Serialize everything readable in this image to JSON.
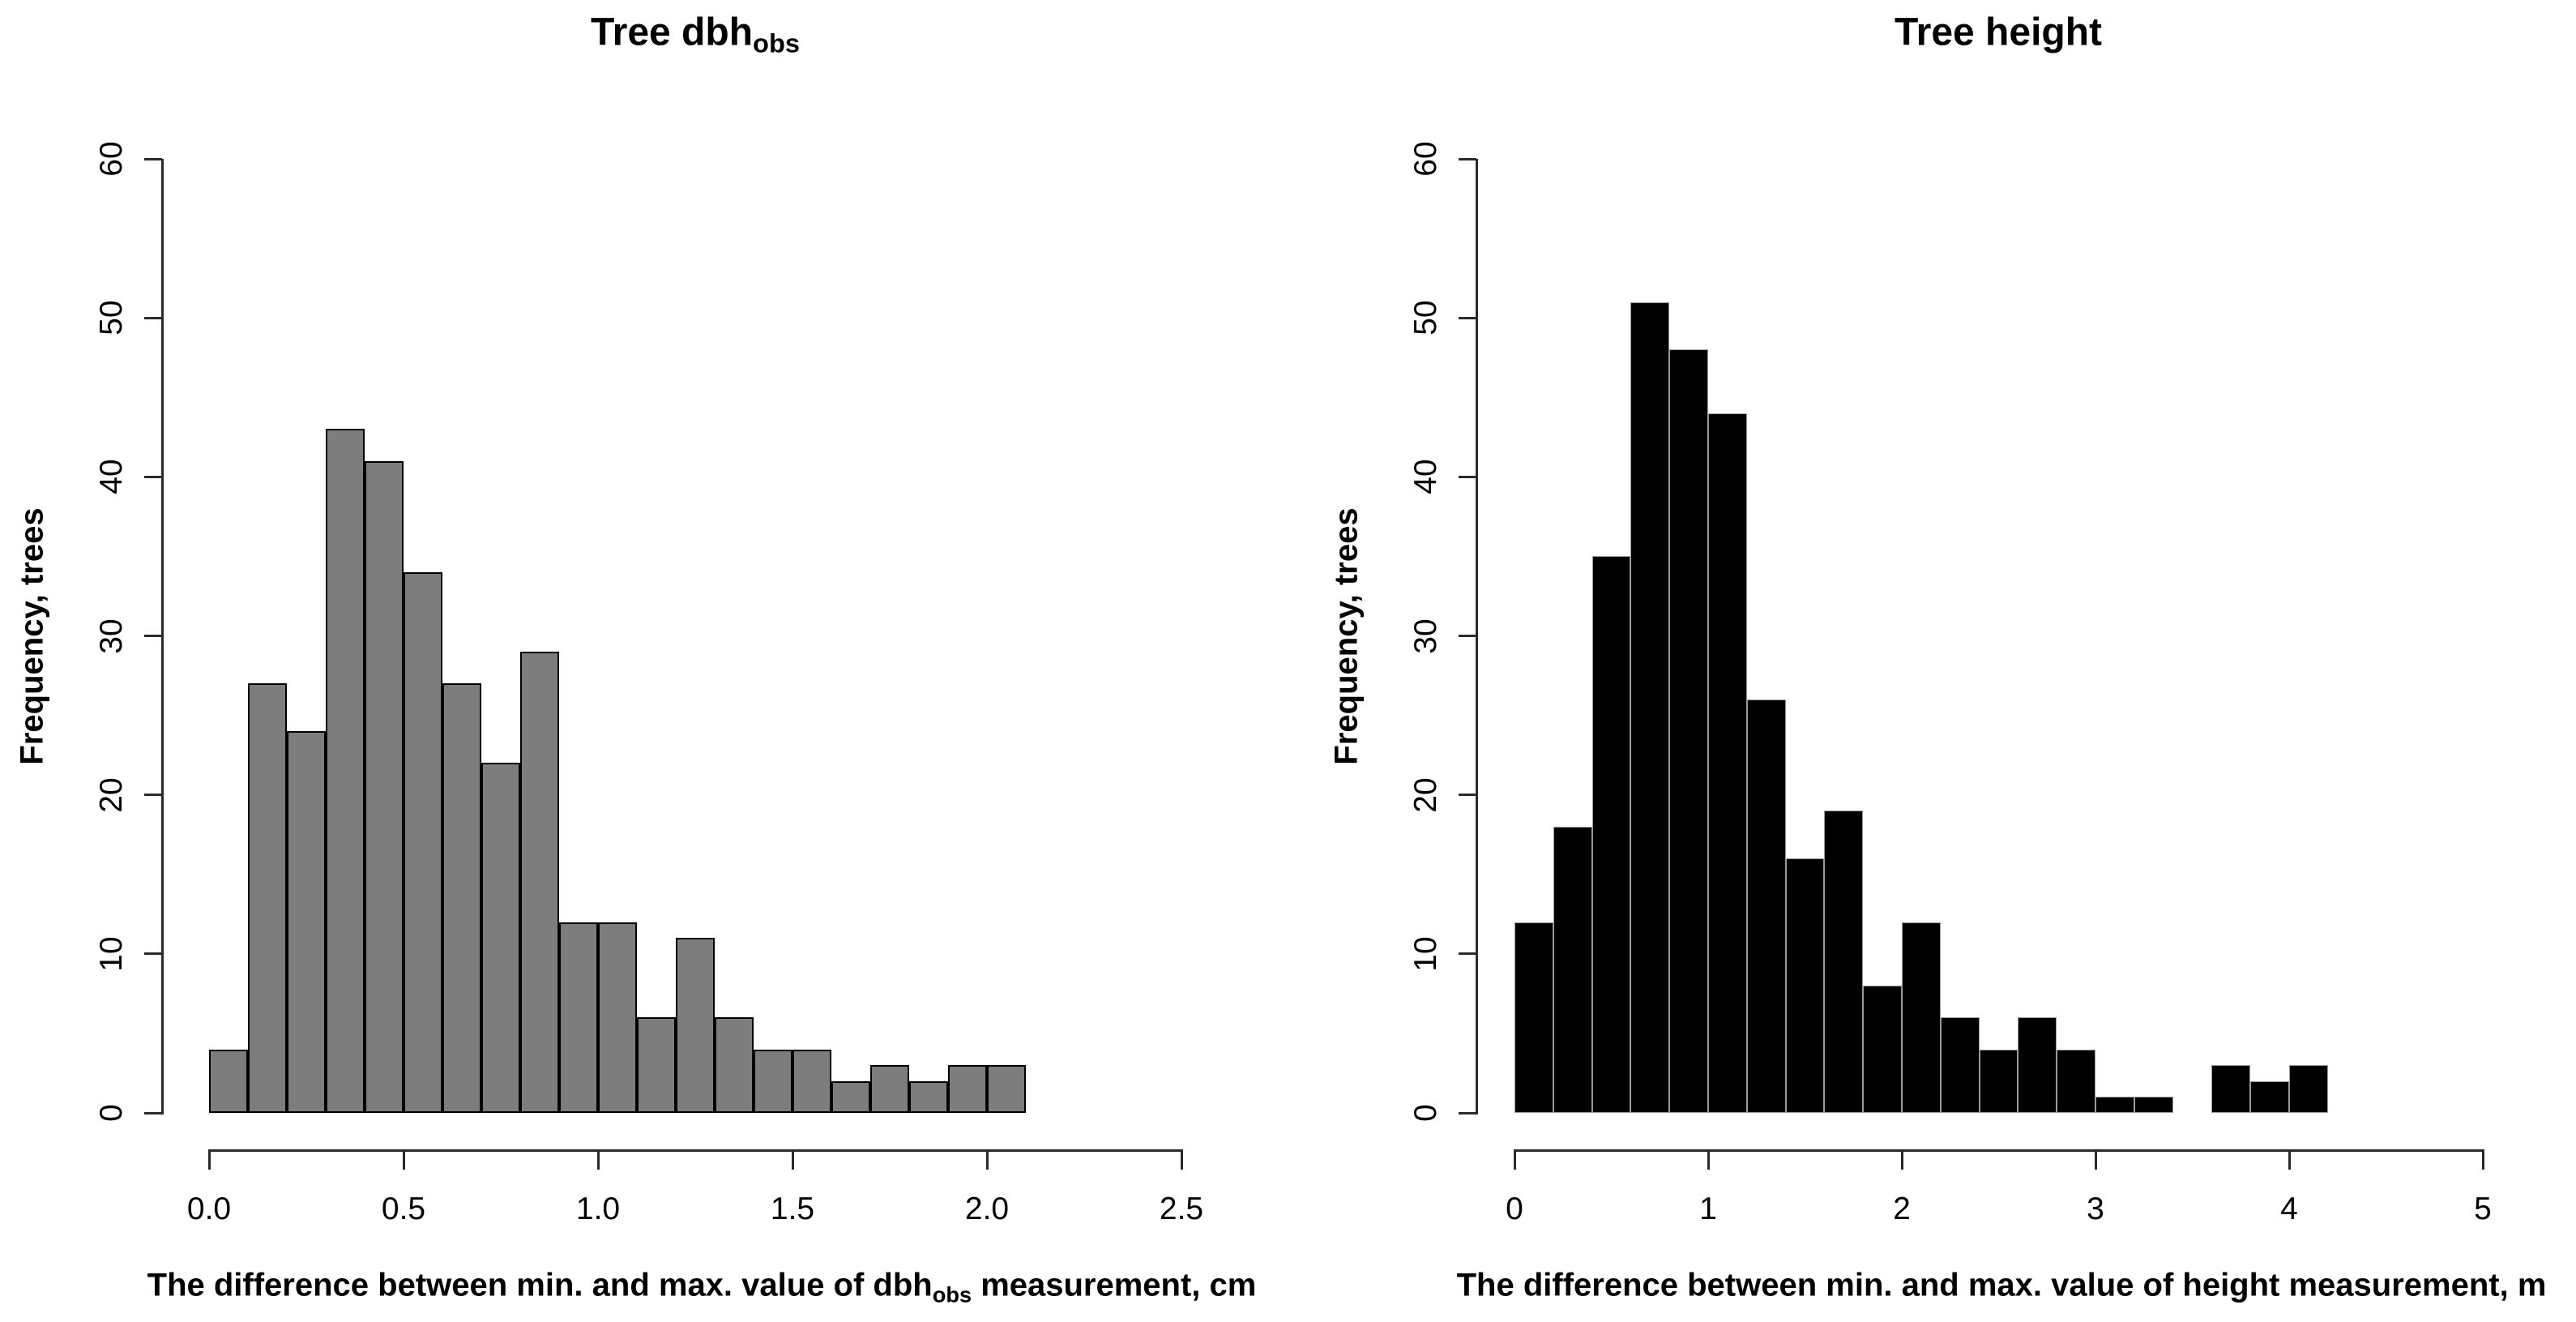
{
  "page": {
    "background": "#ffffff",
    "description": "Two R-style histograms side by side comparing measurement differences for 319 trees"
  },
  "chart_data": [
    {
      "type": "bar",
      "subtype": "histogram",
      "title_main": "Tree dbh",
      "title_sub": "obs",
      "ylabel": "Frequency, trees",
      "xlabel_pre": "The difference between min. and max. value of dbh",
      "xlabel_sub": "obs",
      "xlabel_post": " measurement, cm",
      "bin_start": 0.0,
      "bin_width": 0.1,
      "counts": [
        4,
        27,
        24,
        43,
        41,
        34,
        27,
        22,
        29,
        12,
        12,
        6,
        11,
        6,
        4,
        4,
        2,
        3,
        2,
        3,
        3
      ],
      "x_tick_values": [
        0,
        0.5,
        1.0,
        1.5,
        2.0,
        2.5
      ],
      "x_tick_labels": [
        "0.0",
        "0.5",
        "1.0",
        "1.5",
        "2.0",
        "2.5"
      ],
      "y_tick_values": [
        0,
        10,
        20,
        30,
        40,
        50,
        60
      ],
      "y_tick_labels": [
        "0",
        "10",
        "20",
        "30",
        "40",
        "50",
        "60"
      ],
      "xlim": [
        0,
        2.5
      ],
      "ylim": [
        0,
        60
      ],
      "grid": false,
      "legend": "none",
      "bar_fill": "#7d7d7d",
      "bar_border": "#000000",
      "bar_border_px": 2
    },
    {
      "type": "bar",
      "subtype": "histogram",
      "title_main": "Tree height",
      "title_sub": "",
      "ylabel": "Frequency, trees",
      "xlabel_pre": "The difference between min. and max. value of height measurement, m",
      "xlabel_sub": "",
      "xlabel_post": "",
      "bin_start": 0.0,
      "bin_width": 0.2,
      "counts": [
        12,
        18,
        35,
        51,
        48,
        44,
        26,
        16,
        19,
        8,
        12,
        6,
        4,
        6,
        4,
        1,
        1,
        0,
        3,
        2,
        3
      ],
      "x_tick_values": [
        0,
        1,
        2,
        3,
        4,
        5
      ],
      "x_tick_labels": [
        "0",
        "1",
        "2",
        "3",
        "4",
        "5"
      ],
      "y_tick_values": [
        0,
        10,
        20,
        30,
        40,
        50,
        60
      ],
      "y_tick_labels": [
        "0",
        "10",
        "20",
        "30",
        "40",
        "50",
        "60"
      ],
      "xlim": [
        0,
        5
      ],
      "ylim": [
        0,
        60
      ],
      "grid": false,
      "legend": "none",
      "bar_fill": "#000000",
      "bar_border": "#9a9a9a",
      "bar_border_px": 1
    }
  ]
}
